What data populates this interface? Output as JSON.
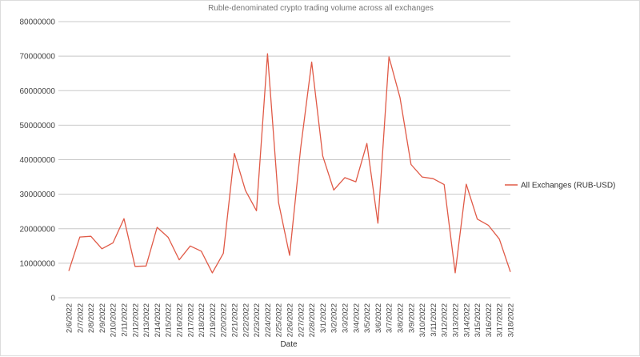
{
  "chart_data": {
    "type": "line",
    "title": "Ruble-denominated crypto trading volume across all exchanges",
    "xlabel": "Date",
    "ylabel": "",
    "ylim": [
      0,
      80000000
    ],
    "yticks": [
      0,
      10000000,
      20000000,
      30000000,
      40000000,
      50000000,
      60000000,
      70000000,
      80000000
    ],
    "grid": "horizontal",
    "legend_position": "right",
    "color": "#e05a47",
    "categories": [
      "2/6/2022",
      "2/7/2022",
      "2/8/2022",
      "2/9/2022",
      "2/10/2022",
      "2/11/2022",
      "2/12/2022",
      "2/13/2022",
      "2/14/2022",
      "2/15/2022",
      "2/16/2022",
      "2/17/2022",
      "2/18/2022",
      "2/19/2022",
      "2/20/2022",
      "2/21/2022",
      "2/22/2022",
      "2/23/2022",
      "2/24/2022",
      "2/25/2022",
      "2/26/2022",
      "2/27/2022",
      "2/28/2022",
      "3/1/2022",
      "3/2/2022",
      "3/3/2022",
      "3/4/2022",
      "3/5/2022",
      "3/6/2022",
      "3/7/2022",
      "3/8/2022",
      "3/9/2022",
      "3/10/2022",
      "3/11/2022",
      "3/12/2022",
      "3/13/2022",
      "3/14/2022",
      "3/15/2022",
      "3/16/2022",
      "3/17/2022",
      "3/18/2022"
    ],
    "series": [
      {
        "name": "All Exchanges (RUB-USD)",
        "values": [
          7800000,
          17600000,
          17800000,
          14200000,
          15900000,
          22900000,
          9100000,
          9200000,
          20400000,
          17500000,
          11000000,
          15000000,
          13500000,
          7200000,
          12900000,
          41800000,
          31100000,
          25200000,
          70700000,
          27600000,
          12300000,
          43300000,
          68300000,
          41100000,
          31200000,
          34800000,
          33600000,
          44700000,
          21600000,
          69800000,
          58000000,
          38600000,
          35000000,
          34500000,
          32800000,
          7200000,
          32900000,
          22800000,
          21000000,
          17000000,
          7500000
        ]
      }
    ]
  }
}
